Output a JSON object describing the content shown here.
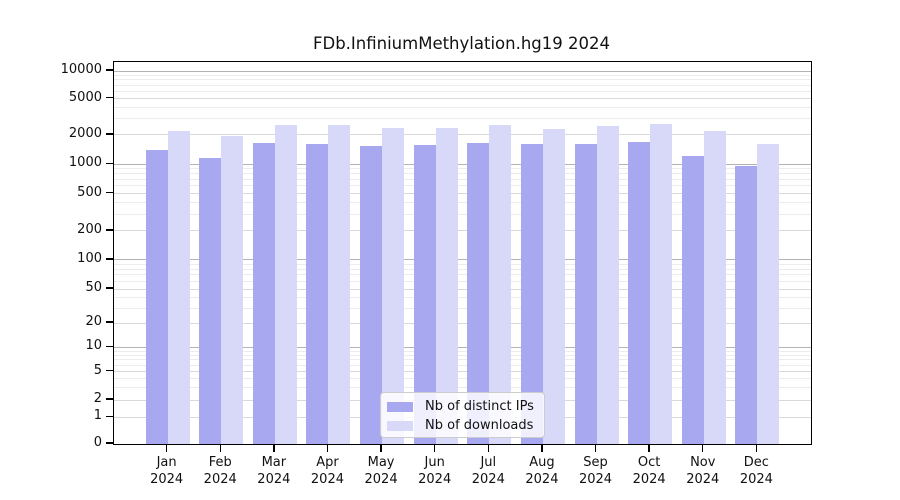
{
  "chart_data": {
    "type": "bar",
    "title": "FDb.InfiniumMethylation.hg19 2024",
    "categories": [
      "Jan",
      "Feb",
      "Mar",
      "Apr",
      "May",
      "Jun",
      "Jul",
      "Aug",
      "Sep",
      "Oct",
      "Nov",
      "Dec"
    ],
    "year": "2024",
    "series": [
      {
        "name": "Nb of distinct IPs",
        "color": "#a8a8f0",
        "values": [
          1400,
          1150,
          1650,
          1600,
          1550,
          1575,
          1650,
          1600,
          1600,
          1675,
          1225,
          950
        ]
      },
      {
        "name": "Nb of downloads",
        "color": "#d8d8f8",
        "values": [
          2200,
          1950,
          2600,
          2600,
          2400,
          2400,
          2600,
          2350,
          2500,
          2650,
          2200,
          1600
        ]
      }
    ],
    "xlabel": "",
    "ylabel": "",
    "y_axis": {
      "scale": "log-like with 0 baseline",
      "tick_values": [
        0,
        1,
        2,
        5,
        10,
        20,
        50,
        100,
        200,
        500,
        1000,
        2000,
        5000,
        10000
      ],
      "tick_labels": [
        "0",
        "1",
        "2",
        "5",
        "10",
        "20",
        "50",
        "100",
        "200",
        "500",
        "1000",
        "2000",
        "5000",
        "10000"
      ]
    },
    "grid": "on",
    "legend": {
      "position": "lower center",
      "items": [
        {
          "label": "Nb of distinct IPs",
          "color": "#a8a8f0"
        },
        {
          "label": "Nb of downloads",
          "color": "#d8d8f8"
        }
      ]
    }
  }
}
